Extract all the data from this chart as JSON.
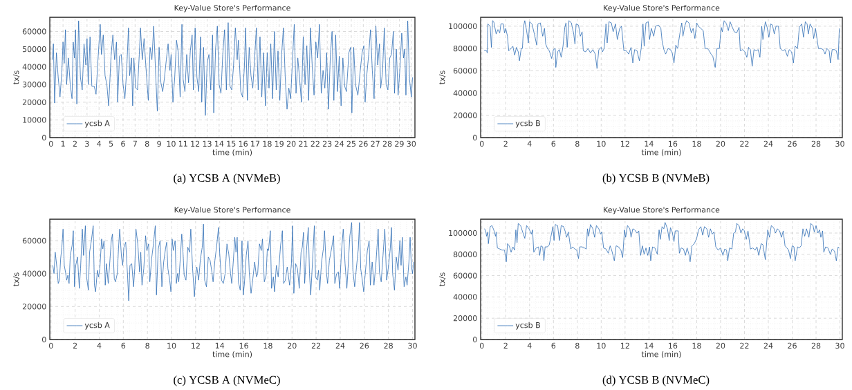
{
  "chart_data": [
    {
      "type": "line",
      "title": "Key-Value Store's Performance",
      "xlabel": "time (min)",
      "ylabel": "tx/s",
      "annotations": [
        "(a) YCSB A (NVMeB)"
      ],
      "grid": true,
      "legend": "bottom left",
      "xlim": [
        -0.1,
        30.3
      ],
      "ylim": [
        0,
        68000
      ],
      "xticks": [
        0,
        1,
        2,
        3,
        4,
        5,
        6,
        7,
        8,
        9,
        10,
        11,
        12,
        13,
        14,
        15,
        16,
        17,
        18,
        19,
        20,
        21,
        22,
        23,
        24,
        25,
        26,
        27,
        28,
        29,
        30
      ],
      "yticks": [
        0,
        10000,
        20000,
        30000,
        40000,
        50000,
        60000
      ],
      "x": [
        0.1,
        0.2,
        0.3,
        0.45,
        0.6,
        0.75,
        0.9,
        1.0,
        1.1,
        1.2,
        1.3,
        1.45,
        1.6,
        1.75,
        1.85,
        1.95,
        2.05,
        2.15,
        2.3,
        2.45,
        2.6,
        2.75,
        2.9,
        3.0,
        3.1,
        3.25,
        3.4,
        3.6,
        3.75,
        3.9,
        4.1,
        4.2,
        4.35,
        4.5,
        4.65,
        4.8,
        5.0,
        5.15,
        5.3,
        5.45,
        5.55,
        5.7,
        5.85,
        6.0,
        6.15,
        6.3,
        6.45,
        6.55,
        6.7,
        6.8,
        6.9,
        7.05,
        7.2,
        7.35,
        7.45,
        7.6,
        7.75,
        7.9,
        8.1,
        8.25,
        8.4,
        8.55,
        8.7,
        8.85,
        9.0,
        9.15,
        9.3,
        9.45,
        9.6,
        9.75,
        9.9,
        10.0,
        10.15,
        10.3,
        10.45,
        10.6,
        10.75,
        10.9,
        11.0,
        11.15,
        11.3,
        11.45,
        11.6,
        11.75,
        11.85,
        12.0,
        12.15,
        12.3,
        12.45,
        12.55,
        12.7,
        12.85,
        13.0,
        13.15,
        13.3,
        13.45,
        13.55,
        13.7,
        13.85,
        14.0,
        14.15,
        14.3,
        14.45,
        14.6,
        14.75,
        14.9,
        15.05,
        15.2,
        15.35,
        15.5,
        15.6,
        15.8,
        15.95,
        16.1,
        16.2,
        16.35,
        16.5,
        16.65,
        16.8,
        16.95,
        17.1,
        17.25,
        17.4,
        17.55,
        17.7,
        17.85,
        18.0,
        18.15,
        18.3,
        18.45,
        18.6,
        18.75,
        18.9,
        19.05,
        19.2,
        19.35,
        19.5,
        19.65,
        19.8,
        19.95,
        20.1,
        20.25,
        20.4,
        20.55,
        20.7,
        20.85,
        21.0,
        21.15,
        21.3,
        21.45,
        21.6,
        21.75,
        21.9,
        22.05,
        22.2,
        22.35,
        22.5,
        22.65,
        22.8,
        22.95,
        23.1,
        23.25,
        23.4,
        23.55,
        23.7,
        23.85,
        24.0,
        24.15,
        24.3,
        24.45,
        24.6,
        24.8,
        24.95,
        25.05,
        25.2,
        25.35,
        25.55,
        25.75,
        25.9,
        26.05,
        26.15,
        26.3,
        26.45,
        26.6,
        26.75,
        26.9,
        27.05,
        27.2,
        27.35,
        27.45,
        27.6,
        27.75,
        27.9,
        28.05,
        28.2,
        28.35,
        28.5,
        28.6,
        28.75,
        28.9,
        29.05,
        29.2,
        29.35,
        29.45,
        29.55,
        29.7,
        29.85,
        30.0,
        30.1
      ],
      "series": [
        {
          "name": "ycsb A",
          "color": "#2f6db5",
          "values": [
            44000,
            53000,
            19500,
            48000,
            34000,
            23000,
            37000,
            54000,
            42000,
            61000,
            30000,
            45000,
            30000,
            22000,
            54000,
            45000,
            61000,
            19000,
            66000,
            34000,
            27000,
            53000,
            41000,
            56000,
            30000,
            57000,
            29000,
            29000,
            24500,
            43000,
            64000,
            47000,
            58000,
            35000,
            30000,
            18000,
            46000,
            58000,
            44000,
            54000,
            20000,
            46000,
            47000,
            30000,
            22000,
            38000,
            62000,
            35000,
            45000,
            18000,
            45000,
            28000,
            27000,
            47000,
            62000,
            44000,
            56000,
            40000,
            21000,
            51000,
            44000,
            63000,
            38000,
            15000,
            51000,
            31000,
            26000,
            34000,
            44000,
            53000,
            38000,
            47000,
            20000,
            34000,
            55000,
            48000,
            23000,
            64000,
            33000,
            26000,
            47000,
            31000,
            49000,
            58000,
            27000,
            62000,
            34000,
            26000,
            57000,
            20000,
            51000,
            12500,
            42000,
            47000,
            27000,
            58000,
            14000,
            50000,
            63000,
            30000,
            25000,
            47000,
            61000,
            27000,
            65000,
            29000,
            27000,
            41000,
            62000,
            44000,
            55000,
            26000,
            23000,
            40000,
            62000,
            21000,
            51000,
            35000,
            28000,
            45000,
            62000,
            27000,
            57000,
            23000,
            48000,
            18000,
            48000,
            28000,
            53000,
            22000,
            60000,
            27000,
            49000,
            21000,
            47000,
            62000,
            34000,
            16000,
            28000,
            22000,
            43000,
            64000,
            25000,
            45000,
            33000,
            20000,
            57000,
            30000,
            52000,
            21000,
            62000,
            40000,
            24000,
            54000,
            45000,
            64000,
            25000,
            38000,
            28000,
            48000,
            16000,
            45000,
            60000,
            21000,
            58000,
            26000,
            46000,
            18000,
            45000,
            29000,
            26000,
            48000,
            51000,
            14000,
            51000,
            30000,
            24000,
            38000,
            48000,
            52000,
            20000,
            36000,
            47000,
            61000,
            38000,
            22000,
            63000,
            41000,
            53000,
            28000,
            37000,
            62000,
            30000,
            27000,
            45000,
            47000,
            60000,
            25000,
            50000,
            24000,
            39000,
            59000,
            45000,
            50000,
            24000,
            66000,
            33000,
            23000,
            34000
          ]
        }
      ]
    },
    {
      "type": "line",
      "title": "Key-Value Store's Performance",
      "xlabel": "time (min)",
      "ylabel": "tx/s",
      "annotations": [
        "(b) YCSB B (NVMeB)"
      ],
      "grid": true,
      "legend": "bottom left",
      "xlim": [
        -0.1,
        30.2
      ],
      "ylim": [
        0,
        108000
      ],
      "xticks": [
        0,
        2,
        4,
        6,
        8,
        10,
        12,
        14,
        16,
        18,
        20,
        22,
        24,
        26,
        28,
        30
      ],
      "yticks": [
        0,
        20000,
        40000,
        60000,
        80000,
        100000
      ],
      "x": [
        0.2,
        0.4,
        0.45,
        0.5,
        0.7,
        0.8,
        0.9,
        1.0,
        1.2,
        1.35,
        1.5,
        1.6,
        1.8,
        1.9,
        2.0,
        2.15,
        2.25,
        2.45,
        2.6,
        2.75,
        2.9,
        3.05,
        3.15,
        3.3,
        3.4,
        3.5,
        3.6,
        3.75,
        3.9,
        4.0,
        4.2,
        4.4,
        4.6,
        4.7,
        4.9,
        5.1,
        5.25,
        5.35,
        5.5,
        5.65,
        5.85,
        6.0,
        6.15,
        6.2,
        6.35,
        6.5,
        6.65,
        6.8,
        6.95,
        7.05,
        7.15,
        7.3,
        7.5,
        7.7,
        7.8,
        7.9,
        8.1,
        8.25,
        8.4,
        8.5,
        8.7,
        8.9,
        9.1,
        9.3,
        9.5,
        9.65,
        9.8,
        10.0,
        10.1,
        10.25,
        10.4,
        10.5,
        10.65,
        10.85,
        11.0,
        11.2,
        11.35,
        11.55,
        11.7,
        11.9,
        12.1,
        12.3,
        12.5,
        12.65,
        12.8,
        13.0,
        13.2,
        13.35,
        13.5,
        13.6,
        13.75,
        13.95,
        14.05,
        14.2,
        14.4,
        14.55,
        14.8,
        15.0,
        15.1,
        15.25,
        15.4,
        15.6,
        15.8,
        15.95,
        16.1,
        16.25,
        16.4,
        16.6,
        16.75,
        16.85,
        17.0,
        17.15,
        17.35,
        17.55,
        17.7,
        17.85,
        18.0,
        18.15,
        18.35,
        18.55,
        18.7,
        18.9,
        19.05,
        19.2,
        19.35,
        19.55,
        19.7,
        19.9,
        20.05,
        20.15,
        20.3,
        20.5,
        20.65,
        20.8,
        20.95,
        21.15,
        21.35,
        21.55,
        21.65,
        21.85,
        22.05,
        22.2,
        22.35,
        22.5,
        22.65,
        22.8,
        23.0,
        23.15,
        23.3,
        23.45,
        23.55,
        23.75,
        23.9,
        24.05,
        24.2,
        24.35,
        24.5,
        24.65,
        24.85,
        25.0,
        25.2,
        25.4,
        25.6,
        25.75,
        25.95,
        26.1,
        26.25,
        26.45,
        26.6,
        26.8,
        26.95,
        27.1,
        27.25,
        27.35,
        27.5,
        27.7,
        27.8,
        27.95,
        28.2,
        28.4,
        28.6,
        28.75,
        28.9,
        29.1,
        29.2,
        29.35,
        29.55,
        29.7,
        29.85,
        29.95
      ],
      "series": [
        {
          "name": "ycsb B",
          "color": "#2f6db5",
          "values": [
            78000,
            78000,
            76000,
            102000,
            100000,
            81000,
            105000,
            104000,
            93000,
            97000,
            94000,
            102000,
            102000,
            94000,
            98000,
            91000,
            78000,
            80000,
            82000,
            74000,
            81000,
            77000,
            69000,
            80000,
            80000,
            100000,
            105000,
            96000,
            85000,
            104000,
            102000,
            93000,
            83000,
            102000,
            103000,
            91000,
            98000,
            84000,
            80000,
            78000,
            71000,
            79000,
            80000,
            63000,
            77000,
            79000,
            72000,
            82000,
            99000,
            103000,
            81000,
            105000,
            103000,
            93000,
            84000,
            102000,
            101000,
            91000,
            95000,
            78000,
            77000,
            80000,
            76000,
            79000,
            75000,
            62000,
            79000,
            81000,
            77000,
            80000,
            102000,
            85000,
            104000,
            103000,
            95000,
            102000,
            88000,
            98000,
            100000,
            78000,
            78000,
            75000,
            81000,
            67000,
            79000,
            78000,
            69000,
            80000,
            102000,
            82000,
            103000,
            104000,
            88000,
            98000,
            91000,
            100000,
            101000,
            98000,
            87000,
            79000,
            75000,
            80000,
            79000,
            76000,
            67000,
            83000,
            80000,
            94000,
            103000,
            91000,
            100000,
            105000,
            103000,
            94000,
            98000,
            89000,
            103000,
            100000,
            98000,
            96000,
            80000,
            80000,
            78000,
            75000,
            73000,
            63000,
            80000,
            80000,
            99000,
            95000,
            105000,
            102000,
            96000,
            104000,
            100000,
            95000,
            94000,
            99000,
            78000,
            79000,
            77000,
            72000,
            81000,
            79000,
            64000,
            79000,
            78000,
            79000,
            72000,
            100000,
            88000,
            104000,
            99000,
            90000,
            102000,
            101000,
            93000,
            100000,
            100000,
            80000,
            78000,
            79000,
            73000,
            79000,
            77000,
            67000,
            82000,
            80000,
            99000,
            102000,
            90000,
            104000,
            102000,
            93000,
            102000,
            98000,
            89000,
            98000,
            80000,
            80000,
            79000,
            75000,
            80000,
            78000,
            67000,
            79000,
            79000,
            78000,
            70000,
            98000
          ]
        }
      ]
    },
    {
      "type": "line",
      "title": "Key-Value Store's Performance",
      "xlabel": "time (min)",
      "ylabel": "tx/s",
      "annotations": [
        "(c) YCSB A (NVMeC)"
      ],
      "grid": true,
      "legend": "bottom left",
      "xlim": [
        -0.1,
        30.2
      ],
      "ylim": [
        0,
        73000
      ],
      "xticks": [
        0,
        2,
        4,
        6,
        8,
        10,
        12,
        14,
        16,
        18,
        20,
        22,
        24,
        26,
        28,
        30
      ],
      "yticks": [
        0,
        20000,
        40000,
        60000
      ],
      "x": [
        0.15,
        0.25,
        0.35,
        0.5,
        0.6,
        0.7,
        0.8,
        0.9,
        1.0,
        1.1,
        1.2,
        1.3,
        1.4,
        1.5,
        1.6,
        1.75,
        1.85,
        1.95,
        2.05,
        2.2,
        2.35,
        2.45,
        2.6,
        2.7,
        2.85,
        2.95,
        3.1,
        3.2,
        3.35,
        3.5,
        3.6,
        3.7,
        3.85,
        3.95,
        4.05,
        4.2,
        4.3,
        4.4,
        4.5,
        4.6,
        4.75,
        4.85,
        5.0,
        5.1,
        5.25,
        5.35,
        5.5,
        5.6,
        5.7,
        5.85,
        5.95,
        6.05,
        6.2,
        6.35,
        6.45,
        6.55,
        6.7,
        6.85,
        6.95,
        7.05,
        7.2,
        7.35,
        7.45,
        7.55,
        7.7,
        7.85,
        7.95,
        8.1,
        8.2,
        8.35,
        8.5,
        8.65,
        8.75,
        8.9,
        9.05,
        9.2,
        9.35,
        9.5,
        9.6,
        9.7,
        9.85,
        9.95,
        10.05,
        10.15,
        10.3,
        10.4,
        10.5,
        10.6,
        10.7,
        10.85,
        10.95,
        11.05,
        11.2,
        11.35,
        11.5,
        11.6,
        11.75,
        11.9,
        12.0,
        12.1,
        12.25,
        12.4,
        12.55,
        12.65,
        12.75,
        12.9,
        13.05,
        13.2,
        13.35,
        13.45,
        13.6,
        13.75,
        13.9,
        14.0,
        14.15,
        14.3,
        14.45,
        14.6,
        14.75,
        14.9,
        15.0,
        15.15,
        15.25,
        15.35,
        15.45,
        15.55,
        15.7,
        15.85,
        15.95,
        16.05,
        16.2,
        16.35,
        16.45,
        16.6,
        16.75,
        16.9,
        17.05,
        17.15,
        17.3,
        17.45,
        17.55,
        17.7,
        17.85,
        17.95,
        18.05,
        18.2,
        18.3,
        18.45,
        18.55,
        18.7,
        18.85,
        19.05,
        19.2,
        19.3,
        19.45,
        19.6,
        19.8,
        19.95,
        20.05,
        20.15,
        20.3,
        20.45,
        20.6,
        20.75,
        20.85,
        20.95,
        21.05,
        21.2,
        21.35,
        21.45,
        21.55,
        21.7,
        21.85,
        21.95,
        22.1,
        22.2,
        22.3,
        22.45,
        22.6,
        22.7,
        22.85,
        22.95,
        23.1,
        23.3,
        23.45,
        23.55,
        23.7,
        23.85,
        23.95,
        24.1,
        24.25,
        24.4,
        24.55,
        24.65,
        24.8,
        24.95,
        25.05,
        25.2,
        25.35,
        25.5,
        25.6,
        25.7,
        25.85,
        25.95,
        26.1,
        26.25,
        26.4,
        26.5,
        26.65,
        26.8,
        26.95,
        27.05,
        27.15,
        27.25,
        27.4,
        27.55,
        27.7,
        27.85,
        28.0,
        28.15,
        28.25,
        28.35,
        28.5,
        28.65,
        28.8,
        28.95,
        29.05,
        29.15,
        29.3,
        29.45,
        29.55,
        29.7,
        29.8,
        29.9,
        30.0,
        30.1
      ],
      "series": [
        {
          "name": "ycsb A",
          "color": "#2f6db5",
          "values": [
            45000,
            40000,
            53000,
            43000,
            34000,
            36000,
            49000,
            56000,
            67000,
            45000,
            41000,
            36000,
            39000,
            34000,
            51000,
            57000,
            66000,
            32000,
            45000,
            50000,
            31000,
            43000,
            67000,
            51000,
            69000,
            38000,
            30000,
            53000,
            60000,
            69000,
            33000,
            29000,
            42000,
            38000,
            43000,
            61000,
            55000,
            60000,
            33000,
            46000,
            34000,
            44000,
            60000,
            64000,
            37000,
            35000,
            40000,
            55000,
            67000,
            50000,
            45000,
            56000,
            59000,
            39000,
            23500,
            45000,
            46000,
            32000,
            43000,
            67000,
            58000,
            41000,
            53000,
            33000,
            43000,
            63000,
            54000,
            58000,
            35000,
            49000,
            58000,
            69000,
            27000,
            55000,
            60000,
            32000,
            47000,
            55000,
            59000,
            43000,
            36000,
            29000,
            61000,
            54000,
            60000,
            34000,
            40000,
            35000,
            46000,
            64000,
            53000,
            39000,
            36000,
            56000,
            53000,
            67000,
            43000,
            26000,
            38000,
            44000,
            36000,
            49000,
            56000,
            70000,
            36000,
            32000,
            50000,
            48000,
            41000,
            35000,
            48000,
            57000,
            68000,
            52000,
            36000,
            34000,
            40000,
            58000,
            52000,
            40000,
            34000,
            50000,
            62000,
            53000,
            62000,
            35000,
            30000,
            60000,
            27000,
            34000,
            51000,
            60000,
            41000,
            28000,
            37000,
            47000,
            38000,
            40000,
            58000,
            54000,
            61000,
            35000,
            39000,
            55000,
            54000,
            66000,
            31000,
            38000,
            29000,
            45000,
            38000,
            57000,
            66000,
            34000,
            36000,
            44000,
            33000,
            46000,
            69000,
            28000,
            46000,
            43000,
            31000,
            53000,
            56000,
            65000,
            34000,
            54000,
            68000,
            40000,
            27000,
            47000,
            69000,
            38000,
            36000,
            42000,
            30000,
            47000,
            55000,
            66000,
            41000,
            34000,
            48000,
            56000,
            63000,
            34000,
            40000,
            41000,
            31000,
            53000,
            67000,
            46000,
            31000,
            43000,
            63000,
            71000,
            42000,
            32000,
            44000,
            55000,
            71000,
            43000,
            35000,
            29000,
            42000,
            54000,
            60000,
            33000,
            47000,
            33000,
            45000,
            56000,
            67000,
            41000,
            35000,
            51000,
            67000,
            36000,
            44000,
            55000,
            68000,
            40000,
            30000,
            50000,
            42000,
            60000,
            45000,
            62000,
            32000,
            38000,
            33000,
            47000,
            62000,
            45000,
            40000,
            47000
          ]
        }
      ]
    },
    {
      "type": "line",
      "title": "Key-Value Store's Performance",
      "xlabel": "time (min)",
      "ylabel": "tx/s",
      "annotations": [
        "(d) YCSB B (NVMeC)"
      ],
      "grid": true,
      "legend": "bottom left",
      "xlim": [
        -0.1,
        30.2
      ],
      "ylim": [
        0,
        113000
      ],
      "xticks": [
        0,
        2,
        4,
        6,
        8,
        10,
        12,
        14,
        16,
        18,
        20,
        22,
        24,
        26,
        28,
        30
      ],
      "yticks": [
        0,
        20000,
        40000,
        60000,
        80000,
        100000
      ],
      "x": [
        0.2,
        0.3,
        0.4,
        0.5,
        0.55,
        0.7,
        0.85,
        1.0,
        1.15,
        1.2,
        1.3,
        1.5,
        1.7,
        1.9,
        2.05,
        2.15,
        2.3,
        2.45,
        2.6,
        2.75,
        2.85,
        2.95,
        3.05,
        3.25,
        3.45,
        3.6,
        3.75,
        3.95,
        4.15,
        4.25,
        4.35,
        4.55,
        4.75,
        4.85,
        4.95,
        5.1,
        5.2,
        5.3,
        5.5,
        5.65,
        5.85,
        5.95,
        6.05,
        6.15,
        6.35,
        6.5,
        6.65,
        6.85,
        7.0,
        7.1,
        7.25,
        7.45,
        7.6,
        7.8,
        7.95,
        8.1,
        8.2,
        8.4,
        8.6,
        8.75,
        8.85,
        8.95,
        9.1,
        9.3,
        9.45,
        9.6,
        9.8,
        9.95,
        10.05,
        10.2,
        10.4,
        10.6,
        10.75,
        10.9,
        11.1,
        11.25,
        11.45,
        11.65,
        11.8,
        11.95,
        12.05,
        12.2,
        12.4,
        12.5,
        12.65,
        12.8,
        13.0,
        13.15,
        13.3,
        13.45,
        13.6,
        13.75,
        13.9,
        14.05,
        14.15,
        14.3,
        14.5,
        14.7,
        14.85,
        14.95,
        15.1,
        15.25,
        15.35,
        15.55,
        15.7,
        15.8,
        15.95,
        16.1,
        16.2,
        16.45,
        16.55,
        16.7,
        16.9,
        17.05,
        17.2,
        17.35,
        17.45,
        17.6,
        17.8,
        18.0,
        18.15,
        18.35,
        18.5,
        18.65,
        18.85,
        19.0,
        19.15,
        19.3,
        19.45,
        19.6,
        19.8,
        20.0,
        20.2,
        20.35,
        20.5,
        20.6,
        20.75,
        20.95,
        21.1,
        21.25,
        21.35,
        21.55,
        21.7,
        21.85,
        22.0,
        22.15,
        22.3,
        22.5,
        22.7,
        22.9,
        23.05,
        23.2,
        23.4,
        23.55,
        23.75,
        23.95,
        24.1,
        24.25,
        24.45,
        24.6,
        24.75,
        24.95,
        25.1,
        25.25,
        25.4,
        25.55,
        25.7,
        25.85,
        26.0,
        26.15,
        26.25,
        26.45,
        26.6,
        26.75,
        26.9,
        27.05,
        27.2,
        27.4,
        27.55,
        27.75,
        27.85,
        28.0,
        28.15,
        28.3,
        28.4,
        28.55,
        28.65,
        28.8,
        29.0,
        29.2,
        29.35,
        29.55,
        29.7,
        29.85,
        29.95
      ],
      "series": [
        {
          "name": "ycsb B",
          "color": "#2f6db5",
          "values": [
            104000,
            103000,
            97000,
            101000,
            90000,
            106000,
            107000,
            103000,
            97000,
            101000,
            86000,
            85000,
            84000,
            84000,
            73000,
            90000,
            88000,
            82000,
            87000,
            84000,
            103000,
            91000,
            109000,
            107000,
            100000,
            95000,
            107000,
            104000,
            99000,
            103000,
            82000,
            86000,
            87000,
            79000,
            88000,
            87000,
            74000,
            87000,
            87000,
            89000,
            100000,
            106000,
            93000,
            108000,
            107000,
            93000,
            107000,
            106000,
            101000,
            96000,
            101000,
            85000,
            87000,
            85000,
            84000,
            76000,
            87000,
            87000,
            86000,
            85000,
            104000,
            97000,
            108000,
            104000,
            96000,
            107000,
            104000,
            99000,
            101000,
            86000,
            85000,
            81000,
            88000,
            83000,
            74000,
            88000,
            87000,
            84000,
            77000,
            103000,
            96000,
            107000,
            104000,
            96000,
            104000,
            103000,
            100000,
            102000,
            79000,
            88000,
            80000,
            86000,
            79000,
            87000,
            74000,
            87000,
            86000,
            80000,
            103000,
            94000,
            106000,
            104000,
            110000,
            104000,
            93000,
            105000,
            101000,
            92000,
            102000,
            102000,
            81000,
            86000,
            85000,
            79000,
            86000,
            80000,
            73000,
            88000,
            90000,
            95000,
            103000,
            106000,
            98000,
            106000,
            104000,
            96000,
            104000,
            99000,
            101000,
            87000,
            84000,
            86000,
            79000,
            85000,
            84000,
            74000,
            86000,
            85000,
            100000,
            101000,
            109000,
            107000,
            100000,
            104000,
            102000,
            94000,
            102000,
            85000,
            86000,
            84000,
            87000,
            79000,
            90000,
            89000,
            75000,
            103000,
            96000,
            107000,
            105000,
            100000,
            104000,
            102000,
            96000,
            102000,
            88000,
            86000,
            84000,
            76000,
            88000,
            87000,
            74000,
            87000,
            86000,
            88000,
            104000,
            97000,
            104000,
            96000,
            109000,
            107000,
            101000,
            107000,
            100000,
            103000,
            96000,
            102000,
            82000,
            87000,
            86000,
            80000,
            85000,
            83000,
            74000,
            87000,
            86000
          ]
        }
      ]
    }
  ]
}
